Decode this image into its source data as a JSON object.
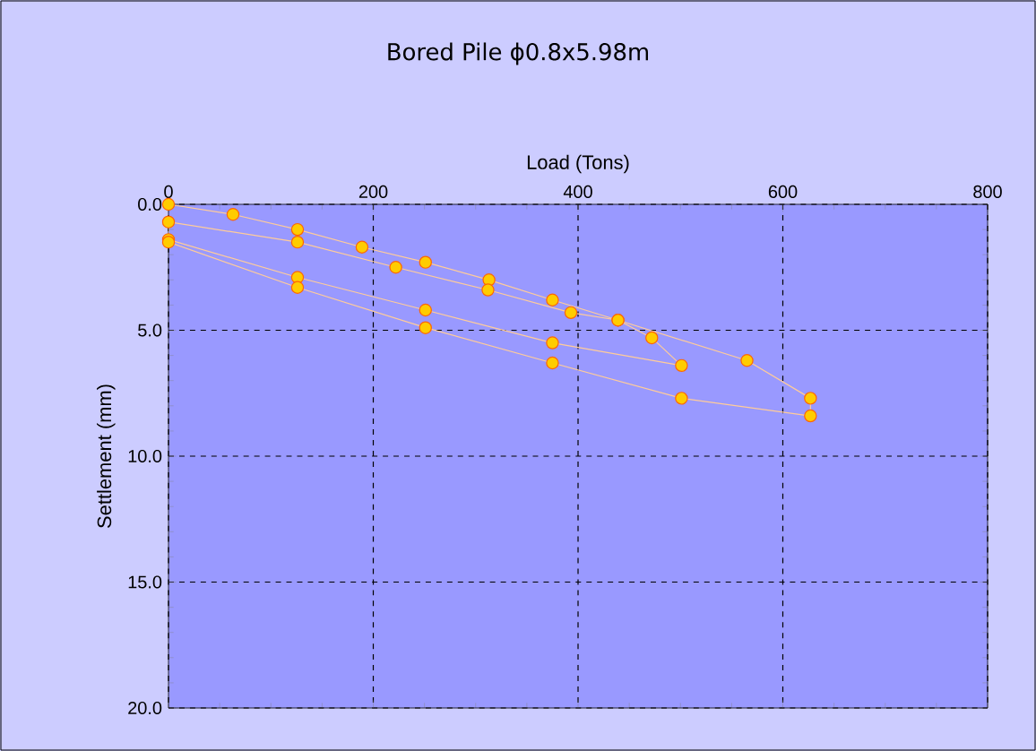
{
  "chart_data": {
    "type": "line",
    "title": "Bored Pile ϕ0.8x5.98m",
    "xlabel": "Load (Tons)",
    "ylabel": "Settlement (mm)",
    "series": [
      {
        "color": "#ffcc00",
        "x": [
          0,
          63,
          126,
          189,
          251,
          313,
          375,
          439,
          472,
          501,
          375,
          251,
          126,
          0,
          0,
          126,
          222,
          312,
          393,
          439,
          565,
          627,
          627,
          501,
          375,
          251,
          126,
          0
        ],
        "values": [
          0,
          0.4,
          1.0,
          1.7,
          2.3,
          3.0,
          3.8,
          4.6,
          5.3,
          6.4,
          5.5,
          4.2,
          2.9,
          1.4,
          0.7,
          1.5,
          2.5,
          3.4,
          4.3,
          4.6,
          6.2,
          7.7,
          8.4,
          7.7,
          6.3,
          4.9,
          3.3,
          1.5
        ]
      }
    ],
    "xlim": [
      0,
      800
    ],
    "xticks": [
      0,
      200,
      400,
      600,
      800
    ],
    "ylim": [
      20,
      0
    ],
    "yticks": [
      {
        "value": 0,
        "label": "0.0"
      },
      {
        "value": 5,
        "label": "5.0"
      },
      {
        "value": 10,
        "label": "10.0"
      },
      {
        "value": 15,
        "label": "15.0"
      },
      {
        "value": 20,
        "label": "20.0"
      }
    ],
    "grid": true,
    "marker": "circle",
    "line_style": "solid"
  }
}
